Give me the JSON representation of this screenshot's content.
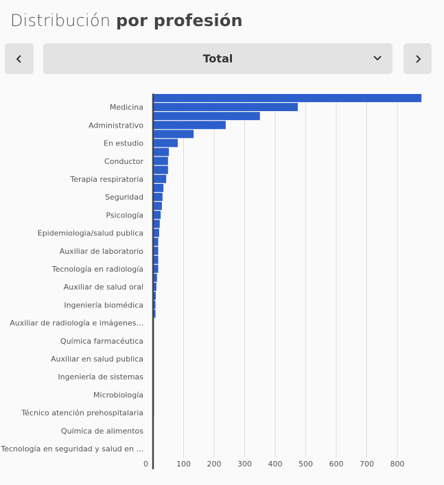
{
  "header": {
    "title_light": "Distribución",
    "title_bold": "por profesión"
  },
  "selector": {
    "value": "Total",
    "prev_icon": "chevron-left-icon",
    "next_icon": "chevron-right-icon",
    "dropdown_icon": "chevron-down-icon"
  },
  "chart_data": {
    "type": "bar",
    "orientation": "horizontal",
    "bar_color": "#2d5fcb",
    "categories": [
      "",
      "Medicina",
      "",
      "Administrativo",
      "",
      "En estudio",
      "",
      "Conductor",
      "",
      "Terapia respiratoria",
      "",
      "Seguridad",
      "",
      "Psicología",
      "",
      "Epidemiologia/salud publica",
      "",
      "Auxiliar de laboratorio",
      "",
      "Tecnología en radiología",
      "",
      "Auxiliar de salud oral",
      "",
      "Ingeniería biomédica",
      "",
      "Auxiliar de radiología e imágenes...",
      "",
      "Química farmacéutica",
      "",
      "Auxiliar en salud publica",
      "",
      "Ingeniería de sistemas",
      "",
      "Microbiología",
      "",
      "Técnico atención prehospitalaria",
      "",
      "Química de alimentos",
      "",
      "Tecnología en seguridad y salud en ..."
    ],
    "values": [
      879,
      474,
      350,
      238,
      133,
      81,
      52,
      49,
      49,
      43,
      34,
      31,
      29,
      25,
      22,
      20,
      17,
      17,
      17,
      17,
      13,
      11,
      9,
      8,
      8,
      3,
      3,
      3,
      3,
      3,
      3,
      2,
      2,
      2,
      2,
      2,
      0,
      0,
      0,
      0
    ],
    "xlim": [
      0,
      900
    ],
    "xticks": [
      "0",
      "100",
      "200",
      "300",
      "400",
      "500",
      "600",
      "700",
      "800"
    ],
    "grid": true
  }
}
